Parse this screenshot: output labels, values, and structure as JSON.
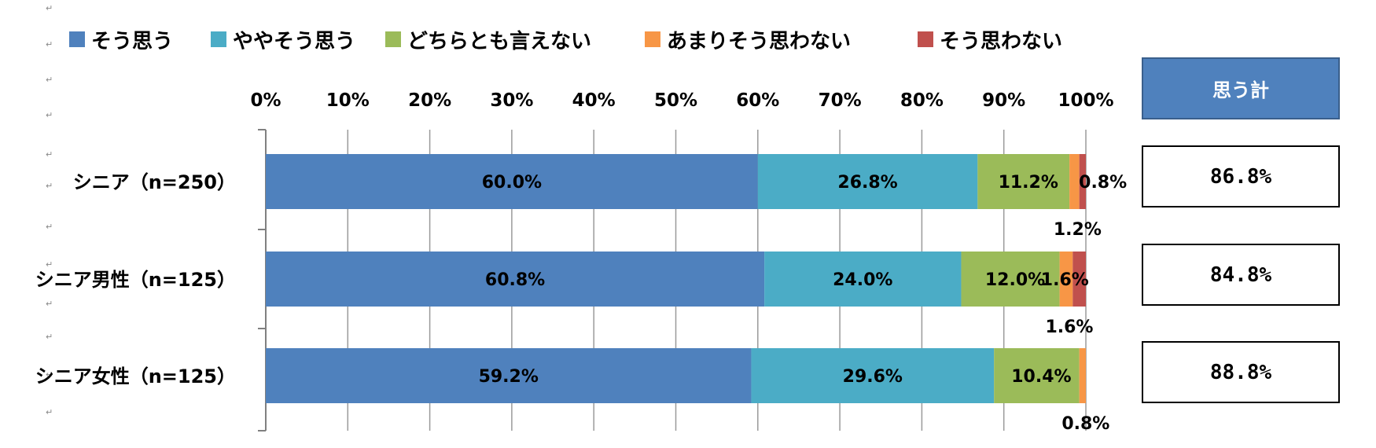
{
  "chart_data": {
    "type": "bar",
    "orientation": "horizontal",
    "stacked": true,
    "categories": [
      "シニア（n=250）",
      "シニア男性（n=125）",
      "シニア女性（n=125）"
    ],
    "series": [
      {
        "name": "そう思う",
        "color": "#4f81bd",
        "values": [
          60.0,
          60.8,
          59.2
        ],
        "labels": [
          "60.0%",
          "60.8%",
          "59.2%"
        ]
      },
      {
        "name": "ややそう思う",
        "color": "#4bacc6",
        "values": [
          26.8,
          24.0,
          29.6
        ],
        "labels": [
          "26.8%",
          "24.0%",
          "29.6%"
        ]
      },
      {
        "name": "どちらとも言えない",
        "color": "#9bbb59",
        "values": [
          11.2,
          12.0,
          10.4
        ],
        "labels": [
          "11.2%",
          "12.0%",
          "10.4%"
        ]
      },
      {
        "name": "あまりそう思わない",
        "color": "#f79646",
        "values": [
          1.2,
          1.6,
          0.8
        ],
        "labels": [
          "1.2%",
          "1.6%",
          "0.8%"
        ]
      },
      {
        "name": "そう思わない",
        "color": "#c0504d",
        "values": [
          0.8,
          1.6,
          0.0
        ],
        "labels": [
          "0.8%",
          "1.6%",
          ""
        ]
      }
    ],
    "x_ticks": [
      "0%",
      "10%",
      "20%",
      "30%",
      "40%",
      "50%",
      "60%",
      "70%",
      "80%",
      "90%",
      "100%"
    ],
    "xlim": [
      0,
      100
    ],
    "grid": true,
    "legend": "top"
  },
  "totals": {
    "header": "思う計",
    "values": [
      "86.8%",
      "84.8%",
      "88.8%"
    ]
  }
}
